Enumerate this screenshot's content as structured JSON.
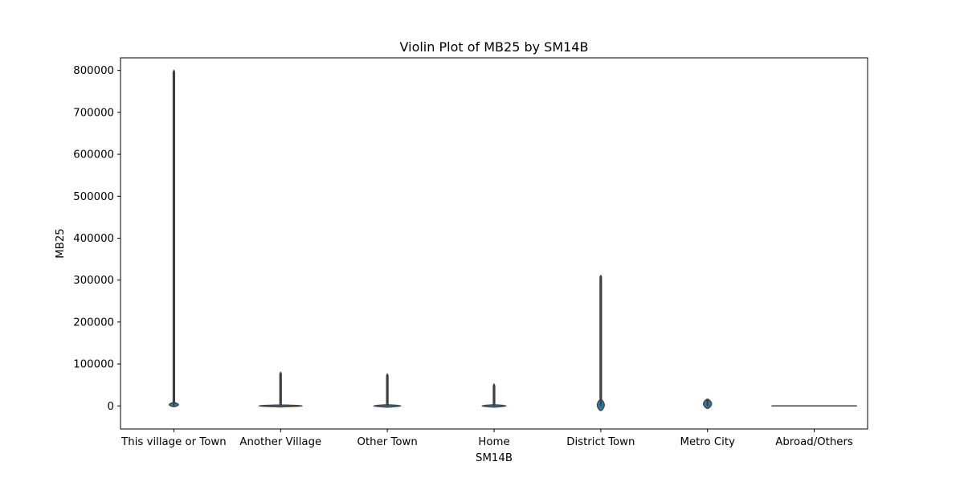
{
  "chart_data": {
    "type": "violin",
    "title": "Violin Plot of MB25 by SM14B",
    "xlabel": "SM14B",
    "ylabel": "MB25",
    "ylim": [
      -55000,
      830000
    ],
    "yticks": [
      0,
      100000,
      200000,
      300000,
      400000,
      500000,
      600000,
      700000,
      800000
    ],
    "grid": false,
    "categories": [
      "This village or Town",
      "Another Village",
      "Other Town",
      "Home",
      "District Town",
      "Metro City",
      "Abroad/Others"
    ],
    "violins": [
      {
        "category": "This village or Town",
        "min": 0,
        "max": 800000,
        "body_low": -2000,
        "body_high": 8000,
        "body_halfwidth": 0.08
      },
      {
        "category": "Another Village",
        "min": 0,
        "max": 80000,
        "body_low": -2500,
        "body_high": 2500,
        "body_halfwidth": 0.4
      },
      {
        "category": "Other Town",
        "min": 0,
        "max": 76000,
        "body_low": -3000,
        "body_high": 3000,
        "body_halfwidth": 0.25
      },
      {
        "category": "Home",
        "min": 0,
        "max": 52000,
        "body_low": -3000,
        "body_high": 3000,
        "body_halfwidth": 0.22
      },
      {
        "category": "District Town",
        "min": 0,
        "max": 311000,
        "body_low": -11000,
        "body_high": 15000,
        "body_halfwidth": 0.06
      },
      {
        "category": "Metro City",
        "min": 0,
        "max": 15000,
        "body_low": -6000,
        "body_high": 16000,
        "body_halfwidth": 0.07
      },
      {
        "category": "Abroad/Others",
        "min": 0,
        "max": 0,
        "body_low": 0,
        "body_high": 0,
        "body_halfwidth": 0.4
      }
    ],
    "colors": {
      "fill": "#3274a1",
      "edge": "#3f3f3f"
    }
  }
}
